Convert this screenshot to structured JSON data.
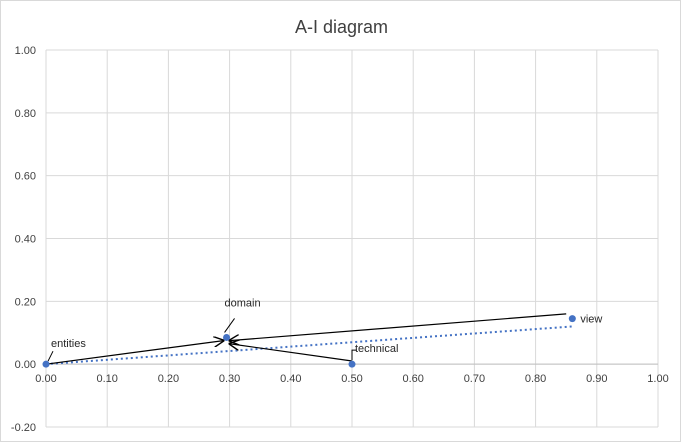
{
  "chart_data": {
    "type": "scatter",
    "title": "A-I diagram",
    "xlim": [
      0,
      1
    ],
    "ylim": [
      -0.2,
      1
    ],
    "x_ticks": [
      "0.00",
      "0.10",
      "0.20",
      "0.30",
      "0.40",
      "0.50",
      "0.60",
      "0.70",
      "0.80",
      "0.90",
      "1.00"
    ],
    "y_ticks": [
      "-0.20",
      "0.00",
      "0.20",
      "0.40",
      "0.60",
      "0.80",
      "1.00"
    ],
    "grid": true,
    "points": [
      {
        "label": "entities",
        "x": 0.0,
        "y": 0.0
      },
      {
        "label": "domain",
        "x": 0.295,
        "y": 0.085
      },
      {
        "label": "technical",
        "x": 0.5,
        "y": 0.0
      },
      {
        "label": "view",
        "x": 0.86,
        "y": 0.145
      }
    ],
    "trendline": {
      "style": "dotted",
      "from": {
        "x": 0.0,
        "y": 0.0
      },
      "to": {
        "x": 0.86,
        "y": 0.12
      }
    },
    "arrows": [
      {
        "from": {
          "x": 0.0,
          "y": 0.0
        },
        "to": {
          "x": 0.29,
          "y": 0.075
        }
      },
      {
        "from": {
          "x": 0.85,
          "y": 0.16
        },
        "to": {
          "x": 0.3,
          "y": 0.075
        }
      },
      {
        "from": {
          "x": 0.5,
          "y": 0.01
        },
        "to": {
          "x": 0.3,
          "y": 0.065
        }
      }
    ],
    "colors": {
      "marker": "#4472c4",
      "trend": "#4472c4",
      "arrow": "#000000",
      "grid": "#d9d9d9"
    }
  }
}
